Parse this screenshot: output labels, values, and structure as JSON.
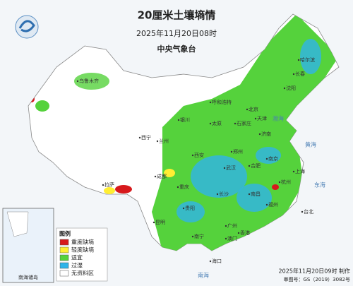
{
  "header": {
    "title": "20厘米土壤墒情",
    "time": "2025年11月20日08时",
    "issuer": "中央气象台"
  },
  "legend": {
    "title": "图例",
    "items": [
      {
        "label": "重度缺墒",
        "color": "#d7191c"
      },
      {
        "label": "轻度缺墒",
        "color": "#ffee33"
      },
      {
        "label": "适宜",
        "color": "#55d23c"
      },
      {
        "label": "过湿",
        "color": "#2fb4e8"
      },
      {
        "label": "无资料区",
        "color": "#ffffff"
      }
    ]
  },
  "labels": [
    "北京",
    "天津",
    "上海",
    "拉萨",
    "成都",
    "重庆",
    "武汉",
    "长沙",
    "广州",
    "南宁",
    "昆明",
    "贵阳",
    "福州",
    "台北",
    "香港",
    "澳门",
    "海口",
    "哈尔滨",
    "长春",
    "沈阳",
    "乌鲁木齐",
    "西宁",
    "兰州",
    "银川",
    "呼和浩特",
    "太原",
    "石家庄",
    "济南",
    "郑州",
    "西安",
    "合肥",
    "南京",
    "杭州",
    "南昌"
  ],
  "seas": [
    "渤海",
    "黄海",
    "东海",
    "南海"
  ],
  "inset": "南海诸岛",
  "footer": {
    "made": "2025年11月20日09时 制作",
    "approval": "审图号：GS（2019）3082号"
  }
}
